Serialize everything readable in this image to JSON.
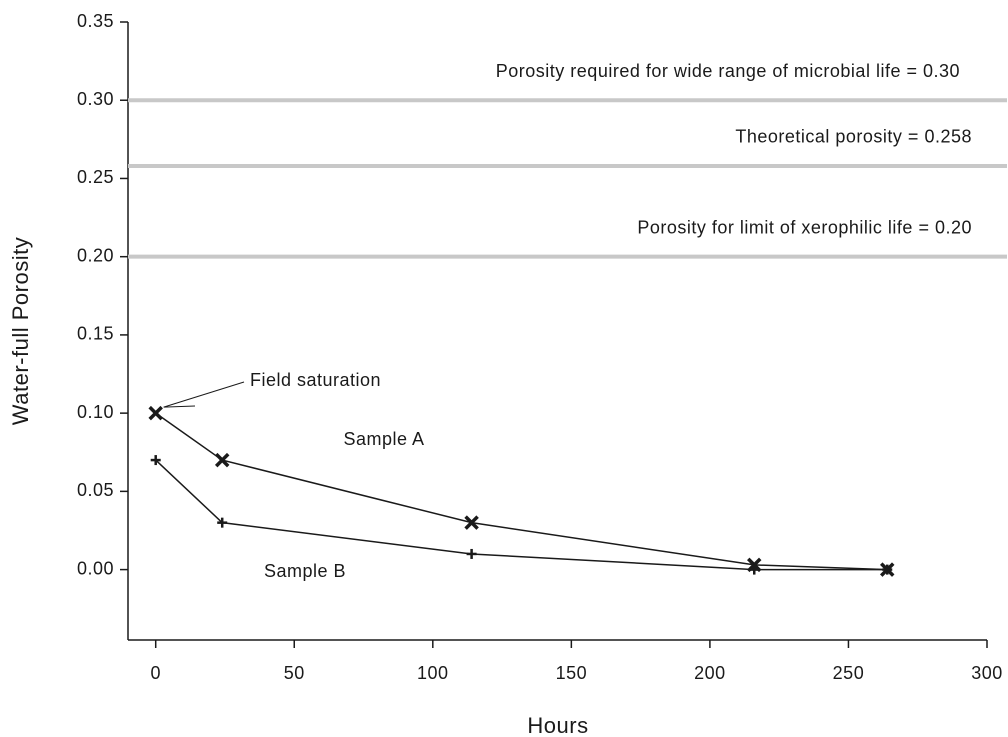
{
  "chart_data": {
    "type": "line",
    "x_label": "Hours",
    "y_label": "Water-full Porosity",
    "series": [
      {
        "name": "Sample A",
        "marker": "x",
        "color": "#1a1a1a",
        "x": [
          0,
          24,
          114,
          216,
          264
        ],
        "values": [
          0.1,
          0.07,
          0.03,
          0.003,
          0
        ]
      },
      {
        "name": "Sample B",
        "marker": "+",
        "color": "#1a1a1a",
        "x": [
          0,
          24,
          114,
          216,
          264
        ],
        "values": [
          0.07,
          0.03,
          0.01,
          0,
          0
        ]
      }
    ],
    "reference_lines": [
      {
        "value": 0.3,
        "label": "Porosity required for wide range of microbial life = 0.30"
      },
      {
        "value": 0.258,
        "label": "Theoretical porosity = 0.258"
      },
      {
        "value": 0.2,
        "label": "Porosity for limit of xerophilic life = 0.20"
      }
    ],
    "reference_color": "#c8c8c8",
    "annotations": [
      "Field saturation"
    ],
    "xlim": [
      -10,
      300
    ],
    "xticks": [
      0,
      50,
      100,
      150,
      200,
      250,
      300
    ],
    "ylim": [
      -0.045,
      0.35
    ],
    "yticks": [
      {
        "value": 0,
        "label": "0.00"
      },
      {
        "value": 0.05,
        "label": "0.05"
      },
      {
        "value": 0.1,
        "label": "0.10"
      },
      {
        "value": 0.15,
        "label": "0.15"
      },
      {
        "value": 0.2,
        "label": "0.20"
      },
      {
        "value": 0.25,
        "label": "0.25"
      },
      {
        "value": 0.3,
        "label": "0.30"
      },
      {
        "value": 0.35,
        "label": "0.35"
      }
    ]
  }
}
